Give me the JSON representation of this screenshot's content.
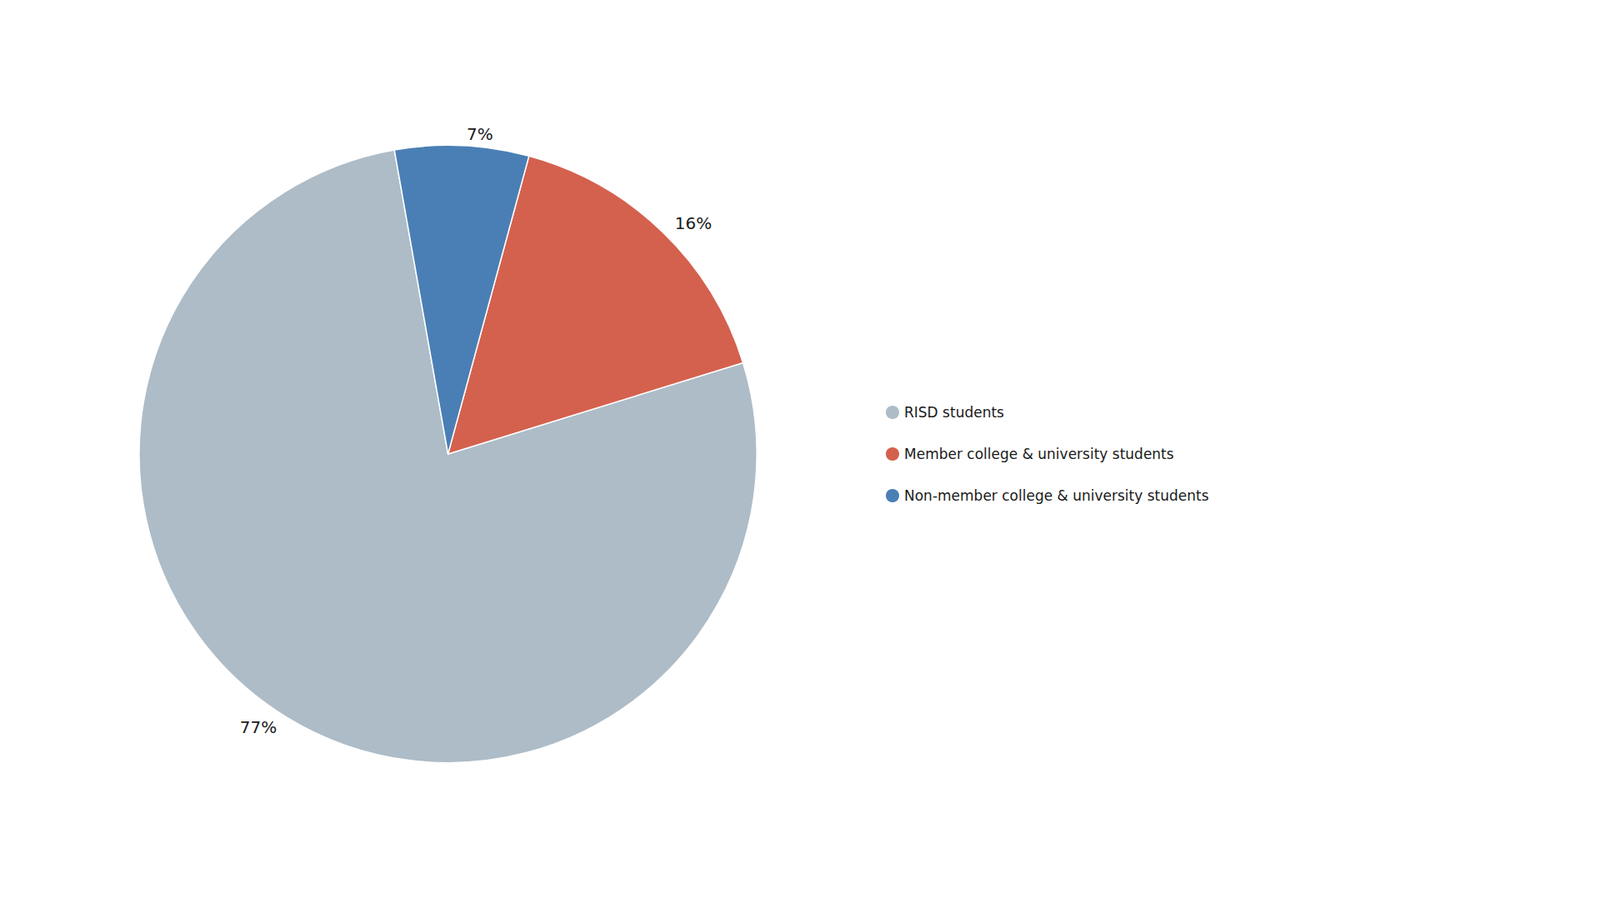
{
  "chart_data": {
    "type": "pie",
    "categories": [
      "RISD students",
      "Member college & university students",
      "Non-member college & university students"
    ],
    "values": [
      77,
      16,
      7
    ],
    "value_labels": [
      "77%",
      "16%",
      "7%"
    ],
    "colors": [
      "#adbcc7",
      "#d4614e",
      "#4a7fb5"
    ],
    "data_labels": true,
    "legend": "right"
  }
}
